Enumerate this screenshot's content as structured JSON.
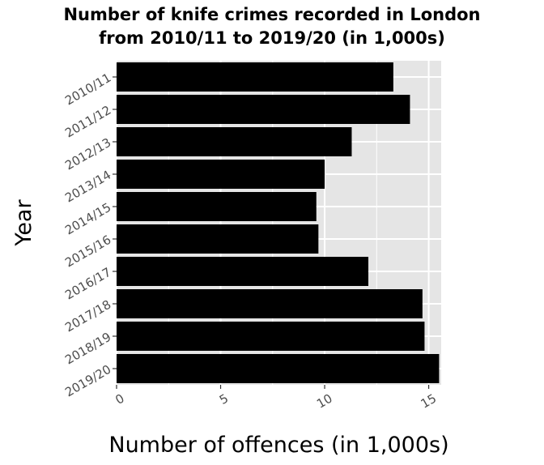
{
  "chart_data": {
    "type": "bar",
    "orientation": "horizontal",
    "title_line1": "Number of knife crimes recorded in London",
    "title_line2": "from 2010/11 to 2019/20 (in 1,000s)",
    "xlabel": "Number of offences (in 1,000s)",
    "ylabel": "Year",
    "categories": [
      "2010/11",
      "2011/12",
      "2012/13",
      "2013/14",
      "2014/15",
      "2015/16",
      "2016/17",
      "2017/18",
      "2018/19",
      "2019/20"
    ],
    "values": [
      13.3,
      14.1,
      11.3,
      10.0,
      9.6,
      9.7,
      12.1,
      14.7,
      14.8,
      15.5
    ],
    "x_ticks": [
      0,
      5,
      10,
      15
    ],
    "xlim": [
      0,
      15.6
    ],
    "grid": true,
    "bar_color": "#000000",
    "panel_color": "#e5e5e5",
    "grid_color": "#ffffff"
  }
}
